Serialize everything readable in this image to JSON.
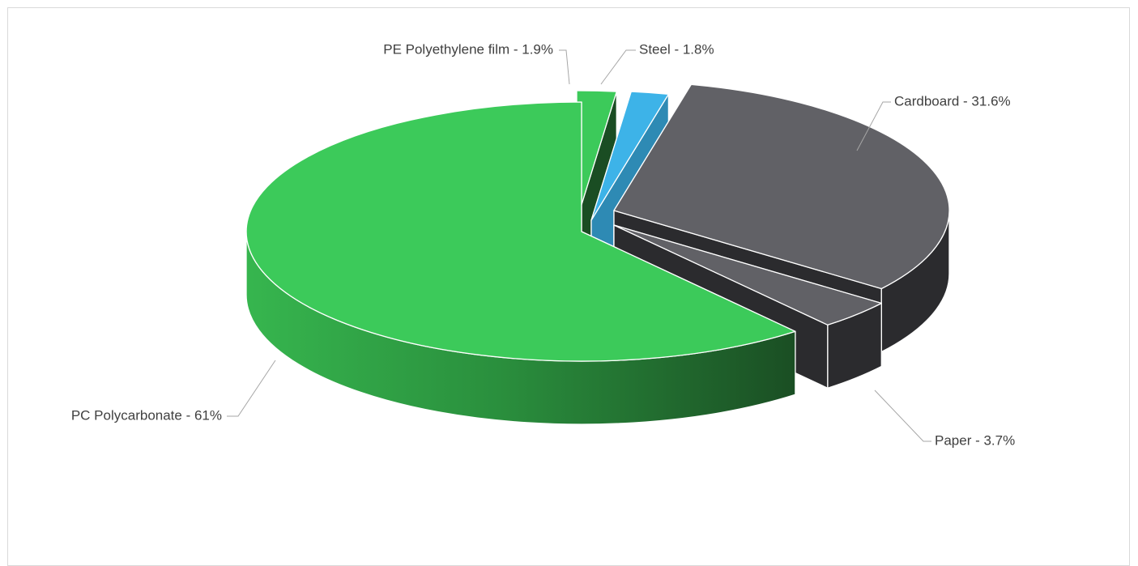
{
  "chart_data": {
    "type": "pie",
    "style": "3d-exploded",
    "title": "",
    "legend": "none",
    "slices": [
      {
        "name": "PC Polycarbonate",
        "value": 61,
        "label": "PC Polycarbonate - 61%",
        "color": "#3cca5a",
        "dark_color": "#1a4d23",
        "exploded": false
      },
      {
        "name": "PE Polyethylene film",
        "value": 1.9,
        "label": "PE Polyethylene film - 1.9%",
        "color": "#3cca5a",
        "dark_color": "#1a4d23",
        "exploded": true
      },
      {
        "name": "Steel",
        "value": 1.8,
        "label": "Steel - 1.8%",
        "color": "#3db3e8",
        "dark_color": "#2e8ab4",
        "exploded": true
      },
      {
        "name": "Cardboard",
        "value": 31.6,
        "label": "Cardboard - 31.6%",
        "color": "#616166",
        "dark_color": "#2b2b2e",
        "exploded": true
      },
      {
        "name": "Paper",
        "value": 3.7,
        "label": "Paper - 3.7%",
        "color": "#616166",
        "dark_color": "#2b2b2e",
        "exploded": true
      }
    ]
  }
}
